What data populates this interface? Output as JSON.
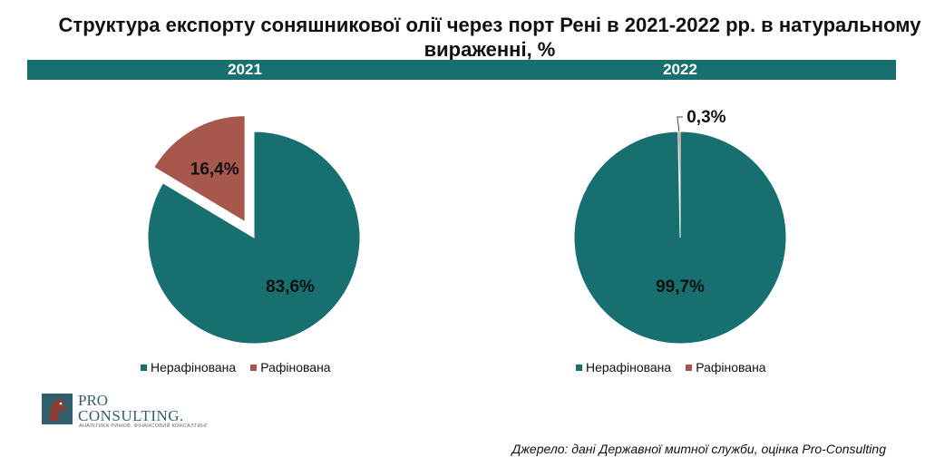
{
  "title": "Структура експорту соняшникової олії через порт Рені в 2021-2022 рр. в натуральному вираженні, %",
  "colors": {
    "band": "#17706f",
    "unrefined": "#17706f",
    "refined": "#a8574d"
  },
  "legend": {
    "unrefined": "Нерафінована",
    "refined": "Рафінована"
  },
  "source": "Джерело: дані Державної митної служби, оцінка Pro-Consulting",
  "logo": {
    "line1": "PRO",
    "line2": "CONSULTING.",
    "tagline": "АНАЛІТИКА РИНКІВ. ФІНАНСОВИЙ КОНСАЛТИНГ"
  },
  "chart_data": [
    {
      "type": "pie",
      "title": "2021",
      "series": [
        {
          "name": "Нерафінована",
          "value": 83.6,
          "label": "83,6%"
        },
        {
          "name": "Рафінована",
          "value": 16.4,
          "label": "16,4%",
          "exploded": true
        }
      ]
    },
    {
      "type": "pie",
      "title": "2022",
      "series": [
        {
          "name": "Нерафінована",
          "value": 99.7,
          "label": "99,7%"
        },
        {
          "name": "Рафінована",
          "value": 0.3,
          "label": "0,3%"
        }
      ]
    }
  ]
}
